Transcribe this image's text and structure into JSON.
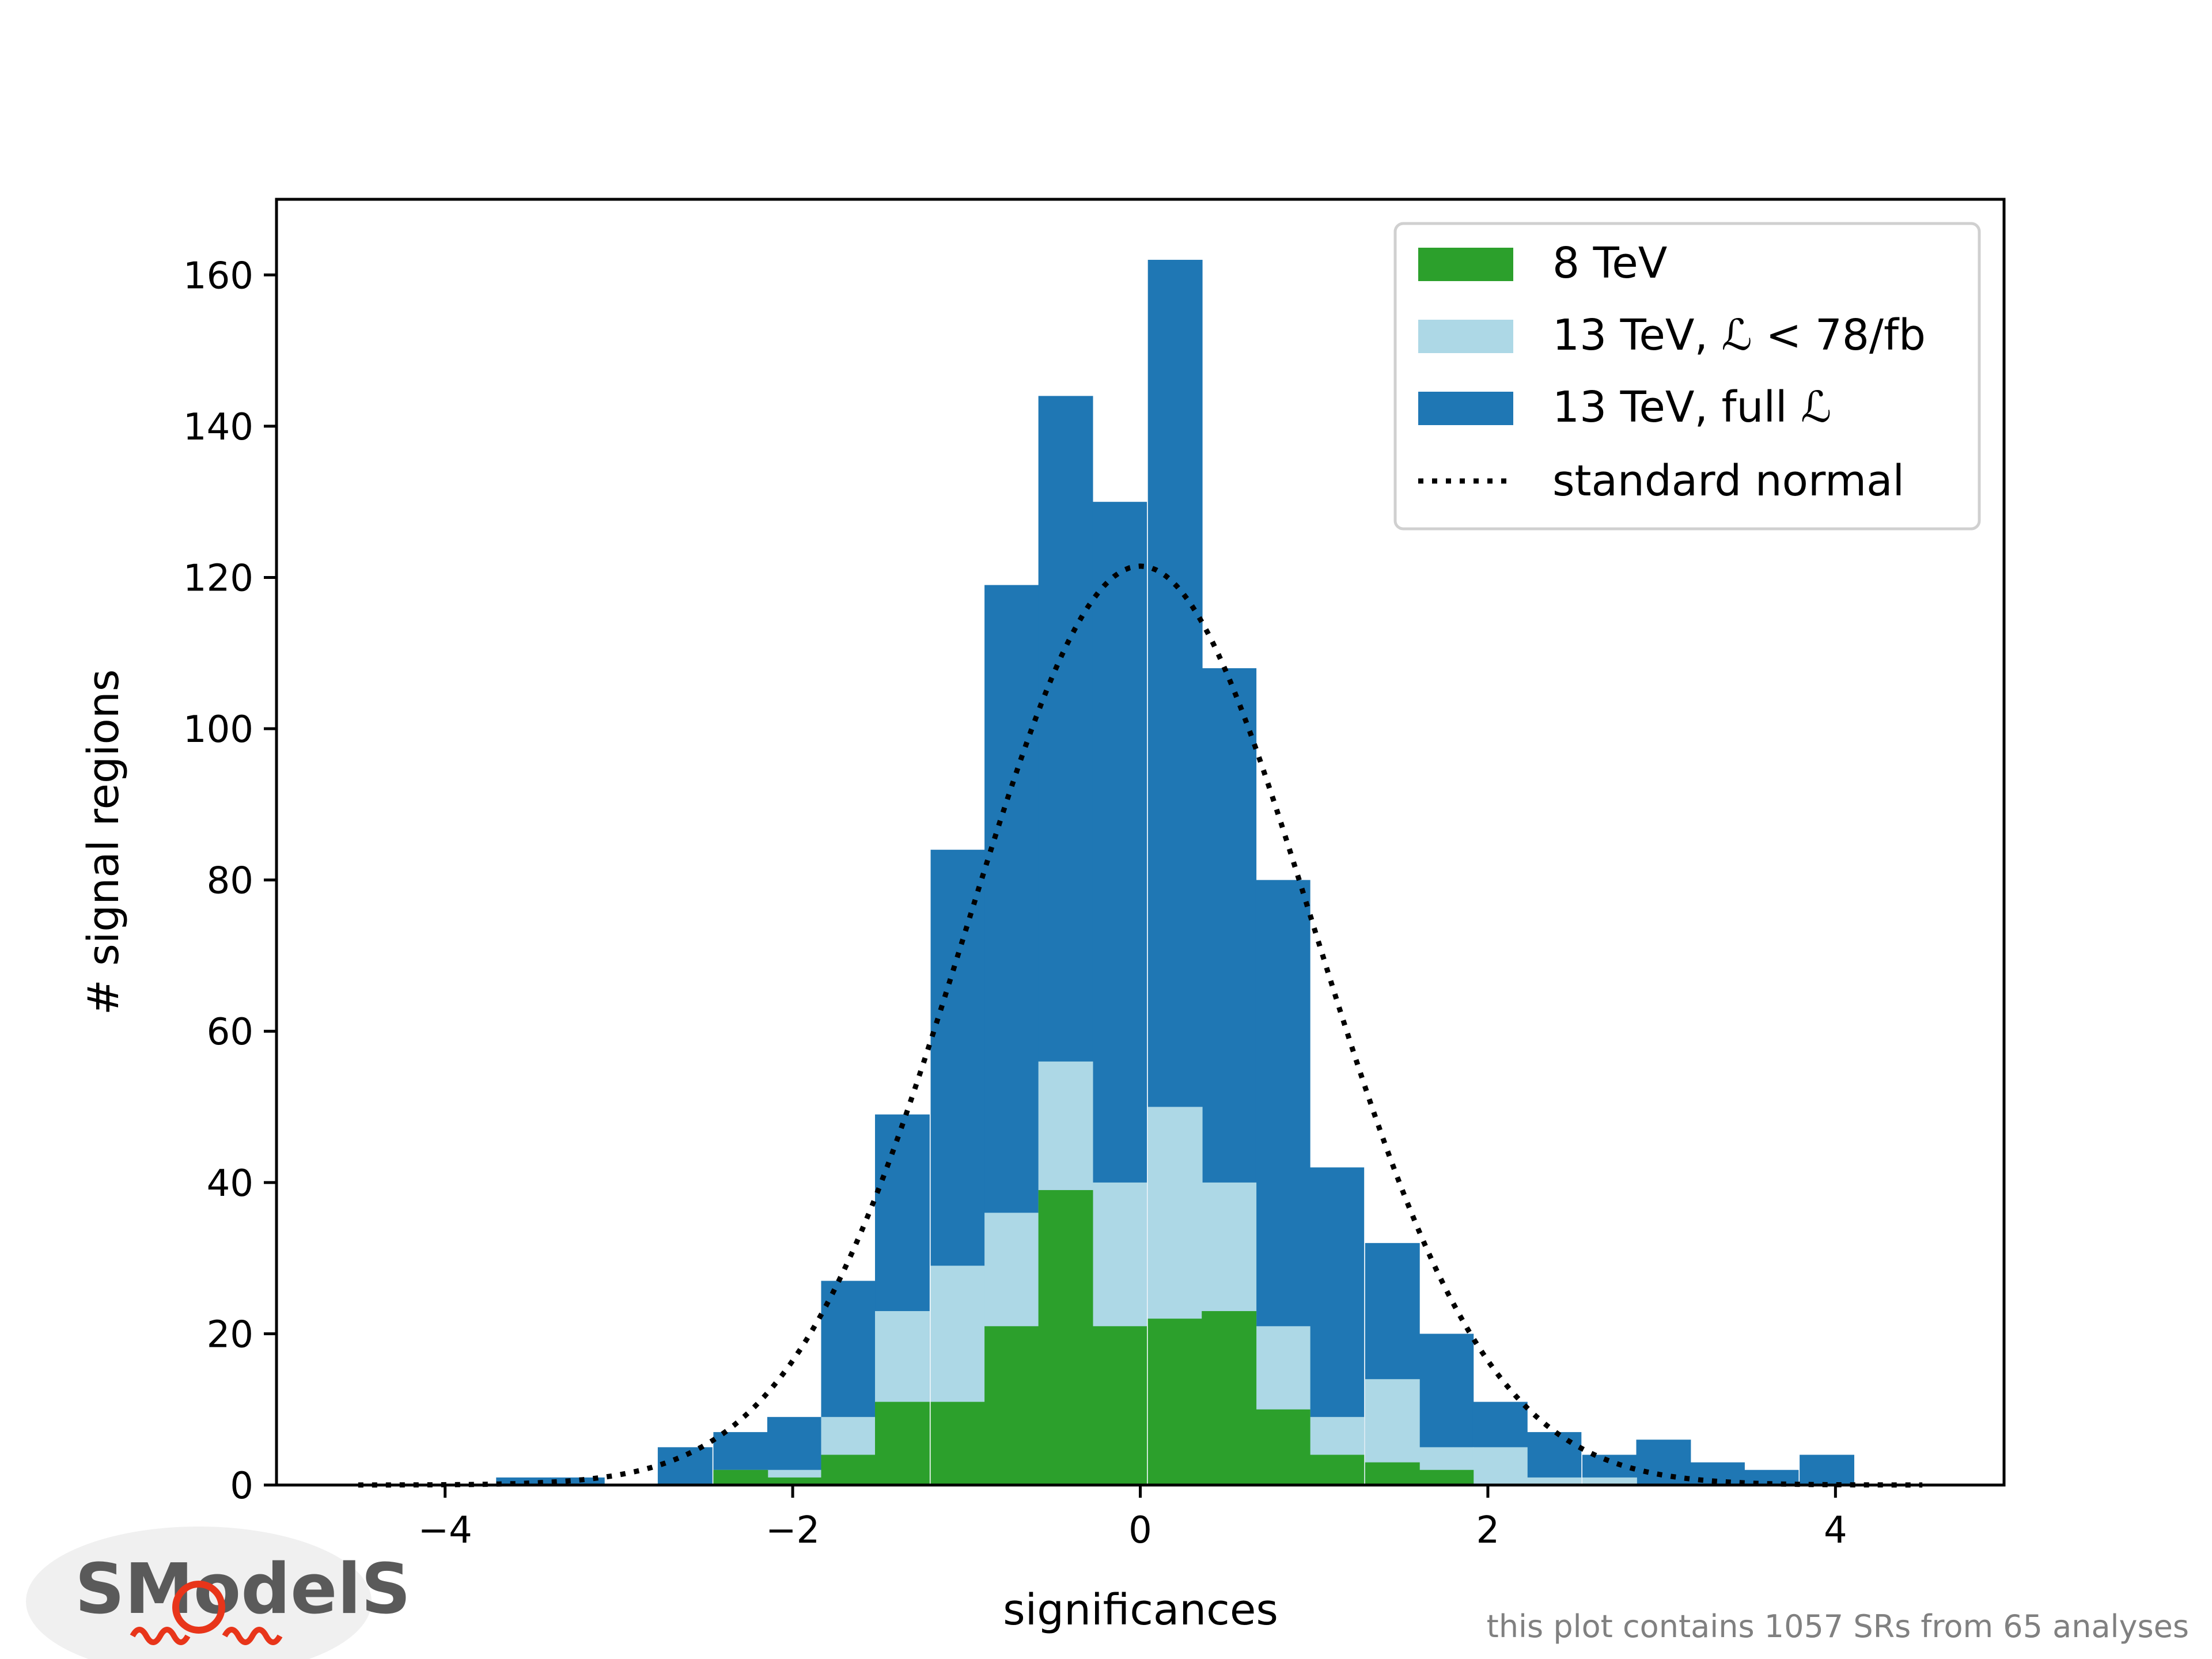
{
  "chart_data": {
    "type": "bar",
    "subtype": "stacked-histogram",
    "xlabel": "significances",
    "ylabel": "# signal regions",
    "xlim": [
      -4.97,
      4.97
    ],
    "ylim": [
      0,
      170
    ],
    "xticks": [
      -4,
      -2,
      0,
      2,
      4
    ],
    "xtick_labels": [
      "−4",
      "−2",
      "0",
      "2",
      "4"
    ],
    "yticks": [
      0,
      20,
      40,
      60,
      80,
      100,
      120,
      140,
      160
    ],
    "ytick_labels": [
      "0",
      "20",
      "40",
      "60",
      "80",
      "100",
      "120",
      "140",
      "160"
    ],
    "bin_width": 0.3125,
    "bin_centers": [
      -3.55,
      -3.24,
      -2.93,
      -2.62,
      -2.3,
      -1.99,
      -1.68,
      -1.37,
      -1.05,
      -0.74,
      -0.43,
      -0.12,
      0.2,
      0.51,
      0.82,
      1.13,
      1.45,
      1.76,
      2.07,
      2.38,
      2.7,
      3.01,
      3.32,
      3.63,
      3.95
    ],
    "series": [
      {
        "name": "8 TeV",
        "color": "#2ca02c",
        "values": [
          0,
          0,
          0,
          0,
          2,
          1,
          4,
          11,
          11,
          21,
          39,
          21,
          22,
          23,
          10,
          4,
          3,
          2,
          0,
          0,
          0,
          0,
          0,
          0,
          0
        ]
      },
      {
        "name": "13 TeV, ℒ < 78/fb",
        "color": "#add8e6",
        "values": [
          0,
          0,
          0,
          0,
          2,
          2,
          9,
          23,
          29,
          36,
          56,
          40,
          50,
          40,
          21,
          9,
          14,
          5,
          5,
          1,
          1,
          0,
          0,
          0,
          0
        ]
      },
      {
        "name": "13 TeV, full ℒ",
        "color": "#1f77b4",
        "values": [
          1,
          1,
          0,
          5,
          7,
          9,
          27,
          49,
          84,
          119,
          144,
          130,
          162,
          108,
          80,
          42,
          32,
          20,
          11,
          7,
          4,
          6,
          3,
          2,
          4
        ]
      },
      {
        "name": "standard normal",
        "color": "#000000",
        "style": "dotted",
        "function": "N * w * pdf(x)",
        "peak": 121.5,
        "x_range": [
          -4.5,
          4.5
        ]
      }
    ],
    "legend_position": "upper right",
    "grid": false
  },
  "footnote": "this plot contains 1057 SRs from 65 analyses",
  "logo": {
    "text": "SModelS"
  }
}
